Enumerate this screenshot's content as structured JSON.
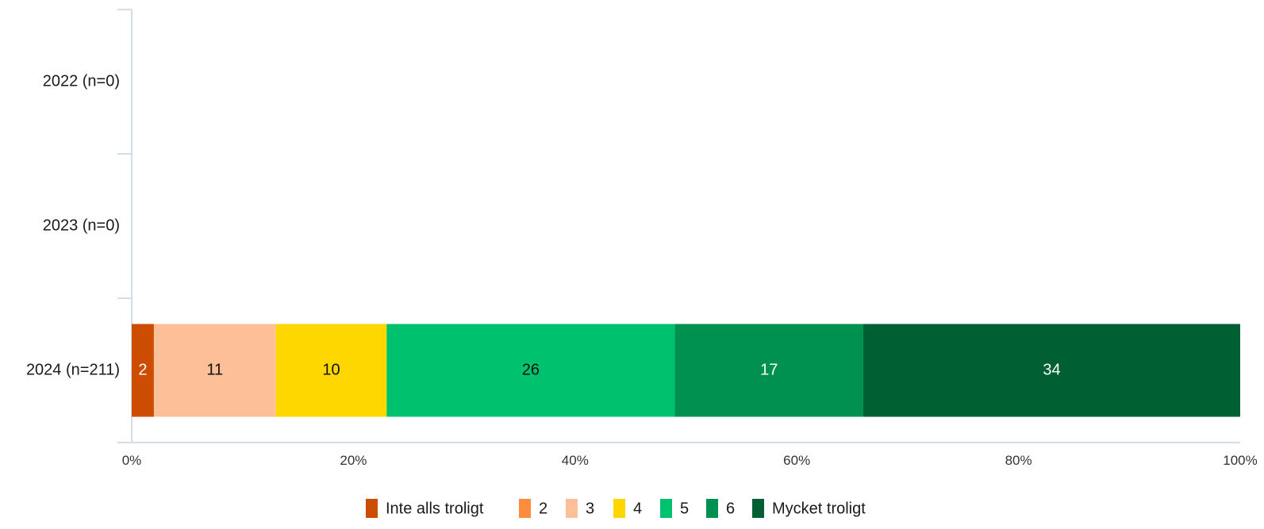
{
  "chart_data": {
    "type": "bar",
    "orientation": "horizontal",
    "stacked": true,
    "percent_stacked": true,
    "categories": [
      "2022 (n=0)",
      "2023 (n=0)",
      "2024 (n=211)"
    ],
    "series": [
      {
        "name": "Inte alls troligt",
        "color": "#CC4C02",
        "values": [
          0,
          0,
          2
        ]
      },
      {
        "name": "2",
        "color": "#FD8D3C",
        "values": [
          0,
          0,
          0
        ]
      },
      {
        "name": "3",
        "color": "#FDBF98",
        "values": [
          0,
          0,
          11
        ]
      },
      {
        "name": "4",
        "color": "#FFD700",
        "values": [
          0,
          0,
          10
        ]
      },
      {
        "name": "5",
        "color": "#00C16E",
        "values": [
          0,
          0,
          26
        ]
      },
      {
        "name": "6",
        "color": "#009150",
        "values": [
          0,
          0,
          17
        ]
      },
      {
        "name": "Mycket troligt",
        "color": "#005F33",
        "values": [
          0,
          0,
          34
        ]
      }
    ],
    "xticks": [
      "0%",
      "20%",
      "40%",
      "60%",
      "80%",
      "100%"
    ],
    "xlim": [
      0,
      100
    ],
    "label_colors": {
      "dark": "#111111",
      "light": "#ffffff"
    },
    "axis_color": "#c5d3e3",
    "legend_placement": "bottom",
    "grid": false
  }
}
